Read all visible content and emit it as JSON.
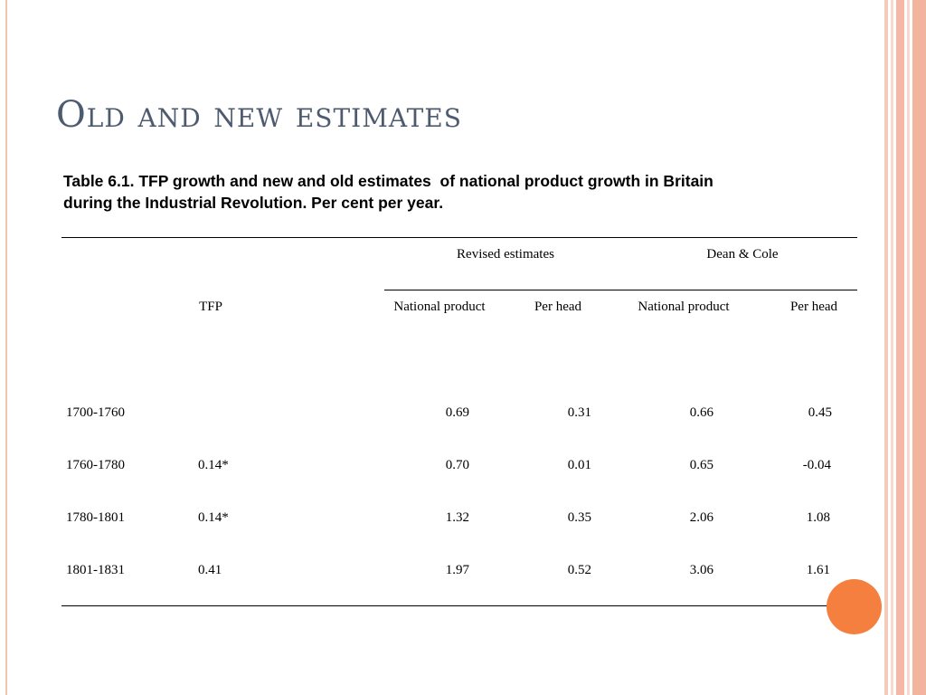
{
  "slide": {
    "title": "Old and new estimates",
    "caption_line1": "Table 6.1. TFP growth and new and old estimates  of national product growth in Britain",
    "caption_line2": "during the Industrial Revolution. Per cent per year."
  },
  "table": {
    "group_headers": {
      "revised": "Revised estimates",
      "dean_cole": "Dean & Cole"
    },
    "column_headers": {
      "tfp": "TFP",
      "rev_national": "National product",
      "rev_per_head": "Per head",
      "dc_national": "National product",
      "dc_per_head": "Per head"
    },
    "rows": [
      {
        "period": "1700-1760",
        "tfp": "",
        "rev_national": "0.69",
        "rev_per_head": "0.31",
        "dc_national": "0.66",
        "dc_per_head": "0.45"
      },
      {
        "period": "1760-1780",
        "tfp": "0.14*",
        "rev_national": "0.70",
        "rev_per_head": "0.01",
        "dc_national": "0.65",
        "dc_per_head": "-0.04"
      },
      {
        "period": "1780-1801",
        "tfp": "0.14*",
        "rev_national": "1.32",
        "rev_per_head": "0.35",
        "dc_national": "2.06",
        "dc_per_head": "1.08"
      },
      {
        "period": "1801-1831",
        "tfp": "0.41",
        "rev_national": "1.97",
        "rev_per_head": "0.52",
        "dc_national": "3.06",
        "dc_per_head": "1.61"
      }
    ]
  },
  "colors": {
    "title": "#4e5b6f",
    "accent_orange": "#f47f3e",
    "stripe": "#f4b8a4"
  }
}
